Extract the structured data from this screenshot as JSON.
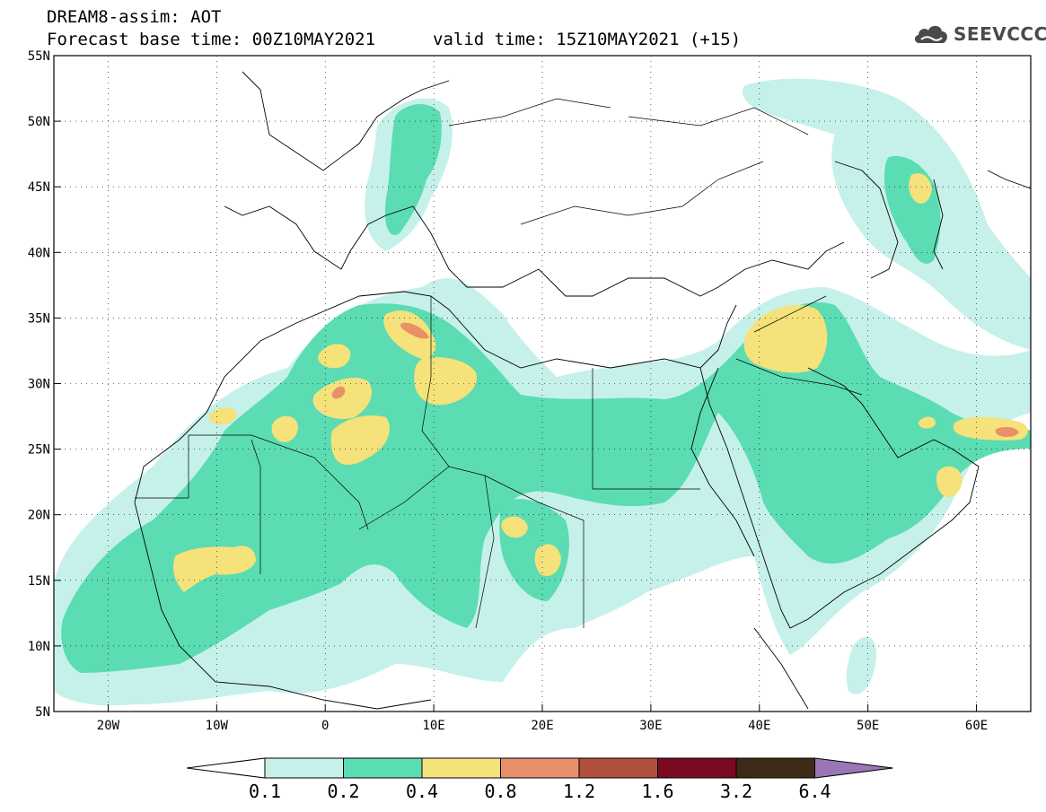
{
  "header": {
    "title": "DREAM8-assim: AOT",
    "base_time": "Forecast base time: 00Z10MAY2021",
    "valid_time": "valid time: 15Z10MAY2021 (+15)",
    "logo_text": "SEEVCCC"
  },
  "map": {
    "lon_range": [
      -25,
      65
    ],
    "lat_range": [
      5,
      55
    ],
    "lon_ticks": [
      "20W",
      "10W",
      "0",
      "10E",
      "20E",
      "30E",
      "40E",
      "50E",
      "60E"
    ],
    "lat_ticks": [
      "55N",
      "50N",
      "45N",
      "40N",
      "35N",
      "30N",
      "25N",
      "20N",
      "15N",
      "10N",
      "5N"
    ]
  },
  "legend": {
    "labels": [
      "0.1",
      "0.2",
      "0.4",
      "0.8",
      "1.2",
      "1.6",
      "3.2",
      "6.4"
    ],
    "colors": [
      "#ffffff",
      "#c6f1ea",
      "#5cdcb2",
      "#f5e27a",
      "#e8906a",
      "#b0513e",
      "#7a0a22",
      "#3e2a16",
      "#9b76b4"
    ]
  }
}
